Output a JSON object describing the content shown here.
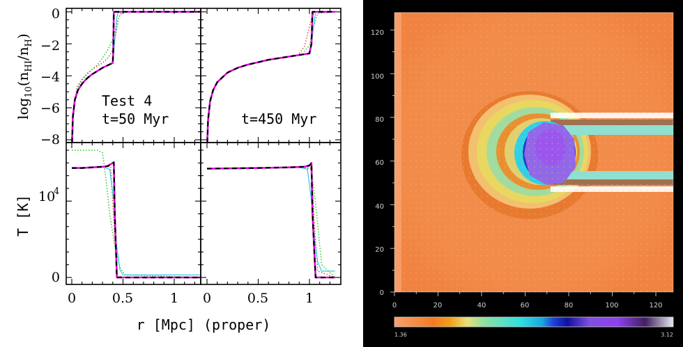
{
  "left_figure": {
    "ylabel_top_parts": [
      "log",
      "10",
      "(n",
      "HI",
      "/n",
      "H",
      ")"
    ],
    "ylabel_bottom": "T [K]",
    "xlabel": "r [Mpc] (proper)",
    "x_ticks": [
      "0",
      "0.5",
      "1"
    ],
    "top_y_ticks": [
      "0",
      "−2",
      "−4",
      "−6",
      "−8"
    ],
    "bottom_y_ticks": [
      "10",
      "4",
      "0"
    ],
    "panel_tl_labels": [
      "Test 4",
      "t=50 Myr"
    ],
    "panel_tr_labels": [
      "t=450 Myr"
    ]
  },
  "right_figure": {
    "y_ticks": [
      "120",
      "100",
      "80",
      "60",
      "40",
      "20",
      "0"
    ],
    "x_ticks": [
      "0",
      "20",
      "40",
      "60",
      "80",
      "100",
      "120"
    ],
    "colorbar_min": "1.36",
    "colorbar_max": "3.12"
  },
  "colors": {
    "magenta": "#e000e0",
    "black_dash": "#000000",
    "cyan": "#1ec8e8",
    "green_dot": "#22cc22",
    "red_dot": "#dd2222",
    "field_orange": "#f28c4a",
    "map_background": "#000000"
  },
  "chart_data": [
    {
      "type": "line",
      "panel": "top-left",
      "xlabel": "r [Mpc] (proper)",
      "ylabel": "log10(nHI/nH)",
      "xlim": [
        0,
        1.25
      ],
      "ylim": [
        -8.3,
        0.2
      ],
      "annotations": [
        "Test 4",
        "t=50 Myr"
      ],
      "series": [
        {
          "style": "magenta-solid",
          "x": [
            0.003,
            0.01,
            0.03,
            0.06,
            0.1,
            0.15,
            0.2,
            0.25,
            0.3,
            0.35,
            0.4,
            0.405,
            0.41,
            0.42,
            1.25
          ],
          "y": [
            -8.2,
            -6.6,
            -5.5,
            -4.9,
            -4.5,
            -4.15,
            -3.9,
            -3.7,
            -3.5,
            -3.35,
            -3.2,
            -2.5,
            0,
            0,
            0
          ]
        },
        {
          "style": "black-dash",
          "x": [
            0.003,
            0.01,
            0.03,
            0.06,
            0.1,
            0.15,
            0.2,
            0.25,
            0.3,
            0.35,
            0.4,
            0.405,
            0.41,
            0.42,
            1.25
          ],
          "y": [
            -8.2,
            -6.6,
            -5.5,
            -4.9,
            -4.5,
            -4.15,
            -3.9,
            -3.7,
            -3.5,
            -3.35,
            -3.2,
            -2.5,
            0,
            0,
            0
          ]
        },
        {
          "style": "cyan-solid",
          "x": [
            0.003,
            0.01,
            0.03,
            0.06,
            0.1,
            0.15,
            0.2,
            0.25,
            0.3,
            0.35,
            0.4,
            0.42,
            0.44,
            0.46,
            1.25
          ],
          "y": [
            -8.2,
            -6.6,
            -5.5,
            -4.9,
            -4.5,
            -4.15,
            -3.9,
            -3.7,
            -3.5,
            -3.35,
            -3.2,
            -1.8,
            -0.3,
            0,
            0
          ]
        },
        {
          "style": "red-dot",
          "x": [
            0.01,
            0.05,
            0.1,
            0.15,
            0.2,
            0.25,
            0.3,
            0.35,
            0.4,
            0.43,
            0.46,
            0.5,
            1.25
          ],
          "y": [
            -6.4,
            -4.7,
            -4.2,
            -3.85,
            -3.6,
            -3.4,
            -3.2,
            -2.9,
            -2.4,
            -1.4,
            -0.3,
            0,
            0
          ]
        },
        {
          "style": "green-dot",
          "x": [
            0.01,
            0.05,
            0.1,
            0.15,
            0.2,
            0.25,
            0.3,
            0.35,
            0.4,
            0.42,
            0.45,
            0.48,
            0.52,
            1.25
          ],
          "y": [
            -6.4,
            -4.8,
            -4.3,
            -3.9,
            -3.6,
            -3.3,
            -2.9,
            -2.4,
            -1.7,
            -1.2,
            -0.5,
            -0.1,
            0,
            0
          ]
        }
      ]
    },
    {
      "type": "line",
      "panel": "top-right",
      "xlim": [
        0,
        1.25
      ],
      "ylim": [
        -8.3,
        0.2
      ],
      "annotations": [
        "t=450 Myr"
      ],
      "series": [
        {
          "style": "magenta-solid",
          "x": [
            0.003,
            0.01,
            0.03,
            0.06,
            0.1,
            0.2,
            0.3,
            0.4,
            0.5,
            0.6,
            0.7,
            0.8,
            0.9,
            1.0,
            1.02,
            1.03,
            1.25
          ],
          "y": [
            -8.2,
            -6.8,
            -5.6,
            -4.9,
            -4.4,
            -3.8,
            -3.5,
            -3.3,
            -3.15,
            -3.0,
            -2.9,
            -2.8,
            -2.7,
            -2.6,
            -2.0,
            0,
            0
          ]
        },
        {
          "style": "black-dash",
          "x": [
            0.003,
            0.01,
            0.03,
            0.06,
            0.1,
            0.2,
            0.3,
            0.4,
            0.5,
            0.6,
            0.7,
            0.8,
            0.9,
            1.0,
            1.02,
            1.03,
            1.25
          ],
          "y": [
            -8.2,
            -6.8,
            -5.6,
            -4.9,
            -4.4,
            -3.8,
            -3.5,
            -3.3,
            -3.15,
            -3.0,
            -2.9,
            -2.8,
            -2.7,
            -2.6,
            -2.0,
            0,
            0
          ]
        },
        {
          "style": "cyan-solid",
          "x": [
            0.003,
            0.01,
            0.03,
            0.06,
            0.1,
            0.2,
            0.3,
            0.4,
            0.5,
            0.6,
            0.7,
            0.8,
            0.9,
            1.0,
            1.03,
            1.06,
            1.25
          ],
          "y": [
            -8.2,
            -6.8,
            -5.6,
            -4.9,
            -4.4,
            -3.8,
            -3.5,
            -3.3,
            -3.15,
            -3.0,
            -2.9,
            -2.8,
            -2.7,
            -2.6,
            -1.5,
            0,
            0
          ]
        },
        {
          "style": "red-dot",
          "x": [
            0.9,
            0.95,
            0.99,
            1.02,
            1.05,
            1.25
          ],
          "y": [
            -2.6,
            -2.2,
            -1.2,
            -0.4,
            0,
            0
          ]
        },
        {
          "style": "green-dot",
          "x": [
            0.95,
            1.0,
            1.04,
            1.08,
            1.25
          ],
          "y": [
            -2.5,
            -2.1,
            -0.9,
            -0.1,
            0
          ]
        }
      ]
    },
    {
      "type": "line",
      "panel": "bottom-left",
      "ylabel": "T [K]",
      "xlim": [
        0,
        1.25
      ],
      "series": [
        {
          "style": "magenta-solid",
          "x": [
            0,
            0.1,
            0.2,
            0.3,
            0.35,
            0.39,
            0.41,
            0.42,
            0.44,
            0.5,
            1.25
          ],
          "y": [
            0.86,
            0.86,
            0.865,
            0.87,
            0.875,
            0.895,
            0.905,
            0.5,
            0,
            0,
            0
          ]
        },
        {
          "style": "black-dash",
          "x": [
            0,
            0.1,
            0.2,
            0.3,
            0.35,
            0.39,
            0.41,
            0.42,
            0.44,
            0.5,
            1.25
          ],
          "y": [
            0.86,
            0.86,
            0.865,
            0.87,
            0.875,
            0.895,
            0.905,
            0.5,
            0,
            0,
            0
          ]
        },
        {
          "style": "cyan-solid",
          "x": [
            0,
            0.2,
            0.3,
            0.37,
            0.41,
            0.43,
            0.47,
            0.5,
            1.25
          ],
          "y": [
            0.86,
            0.865,
            0.87,
            0.85,
            0.6,
            0.3,
            0.06,
            0.02,
            0.02
          ]
        },
        {
          "style": "red-dot",
          "x": [
            0,
            0.3,
            0.38,
            0.42,
            0.44,
            0.5,
            1.25
          ],
          "y": [
            0.86,
            0.87,
            0.87,
            0.3,
            0.02,
            0,
            0
          ]
        },
        {
          "style": "green-dot",
          "x": [
            0,
            0.25,
            0.3,
            0.33,
            0.37,
            0.42,
            0.47,
            0.52,
            1.25
          ],
          "y": [
            1.0,
            1.0,
            0.98,
            0.8,
            0.5,
            0.25,
            0.08,
            0.02,
            0
          ]
        }
      ]
    },
    {
      "type": "line",
      "panel": "bottom-right",
      "xlim": [
        0,
        1.25
      ],
      "series": [
        {
          "style": "magenta-solid",
          "x": [
            0,
            0.2,
            0.5,
            0.8,
            0.95,
            1.0,
            1.02,
            1.03,
            1.06,
            1.25
          ],
          "y": [
            0.855,
            0.857,
            0.86,
            0.865,
            0.87,
            0.88,
            0.9,
            0.5,
            0,
            0
          ]
        },
        {
          "style": "black-dash",
          "x": [
            0,
            0.2,
            0.5,
            0.8,
            0.95,
            1.0,
            1.02,
            1.03,
            1.06,
            1.25
          ],
          "y": [
            0.855,
            0.857,
            0.86,
            0.865,
            0.87,
            0.88,
            0.9,
            0.5,
            0,
            0
          ]
        },
        {
          "style": "cyan-solid",
          "x": [
            0,
            0.5,
            0.9,
            0.98,
            1.02,
            1.05,
            1.08,
            1.12,
            1.25
          ],
          "y": [
            0.855,
            0.86,
            0.865,
            0.85,
            0.6,
            0.3,
            0.12,
            0.05,
            0.05
          ]
        },
        {
          "style": "red-dot",
          "x": [
            0,
            0.9,
            1.02,
            1.05,
            1.08,
            1.25
          ],
          "y": [
            0.855,
            0.865,
            0.86,
            0.4,
            0.05,
            0
          ]
        },
        {
          "style": "green-dot",
          "x": [
            0,
            0.9,
            1.02,
            1.07,
            1.12,
            1.25
          ],
          "y": [
            0.855,
            0.865,
            0.85,
            0.5,
            0.1,
            0
          ]
        }
      ]
    },
    {
      "type": "heatmap",
      "panel": "right",
      "xlim": [
        0,
        128
      ],
      "ylim": [
        0,
        128
      ],
      "x_ticks": [
        0,
        20,
        40,
        60,
        80,
        100,
        120
      ],
      "y_ticks": [
        0,
        20,
        40,
        60,
        80,
        100,
        120
      ],
      "colorbar_range": [
        1.36,
        3.12
      ]
    }
  ]
}
